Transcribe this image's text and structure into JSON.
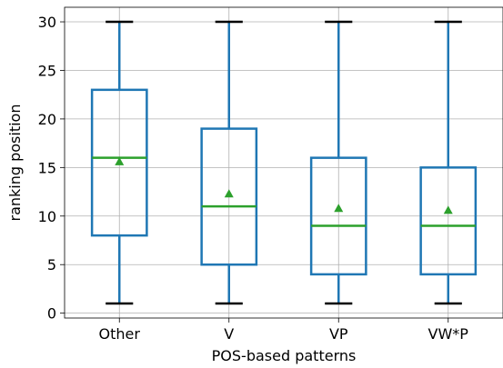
{
  "chart_data": {
    "type": "box",
    "xlabel": "POS-based patterns",
    "ylabel": "ranking position",
    "ylim": [
      -0.5,
      31.5
    ],
    "yticks": [
      0,
      5,
      10,
      15,
      20,
      25,
      30
    ],
    "grid": true,
    "categories": [
      "Other",
      "V",
      "VP",
      "VW*P"
    ],
    "boxes": [
      {
        "category": "Other",
        "whisker_low": 1,
        "q1": 8,
        "median": 16,
        "q3": 23,
        "whisker_high": 30,
        "mean": 15.6
      },
      {
        "category": "V",
        "whisker_low": 1,
        "q1": 5,
        "median": 11,
        "q3": 19,
        "whisker_high": 30,
        "mean": 12.3
      },
      {
        "category": "VP",
        "whisker_low": 1,
        "q1": 4,
        "median": 9,
        "q3": 16,
        "whisker_high": 30,
        "mean": 10.8
      },
      {
        "category": "VW*P",
        "whisker_low": 1,
        "q1": 4,
        "median": 9,
        "q3": 15,
        "whisker_high": 30,
        "mean": 10.6
      }
    ],
    "colors": {
      "box": "#1f77b4",
      "median": "#2ca02c",
      "mean_marker": "#2ca02c",
      "whisker_cap": "#000000",
      "grid": "#b0b0b0"
    }
  }
}
